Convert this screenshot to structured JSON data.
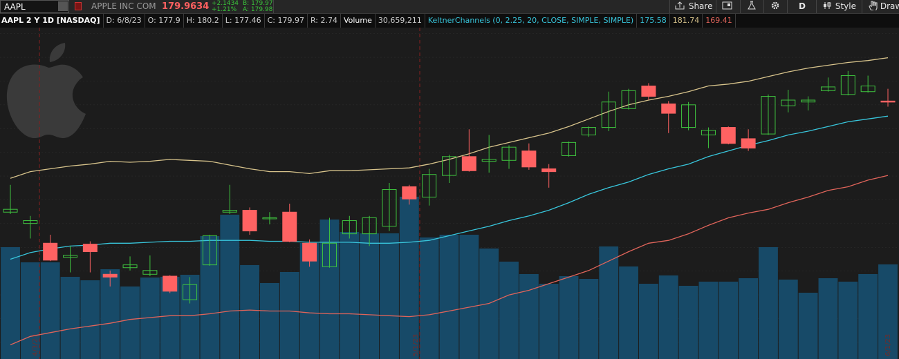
{
  "toolbar": {
    "symbol": "AAPL",
    "company": "APPLE INC COM",
    "last": "179.9634",
    "change": "+2.1434",
    "change_pct": "+1.21%",
    "bid": "B: 179.97",
    "ask": "A: 179.98",
    "share": "Share",
    "period": "D",
    "style": "Style",
    "draw": "Draw"
  },
  "status_bar": {
    "title": "AAPL 2 Y 1D [NASDAQ]",
    "date": "D: 6/8/23",
    "open": "O: 177.9",
    "high": "H: 180.2",
    "low": "L: 177.46",
    "close": "C: 179.97",
    "range": "R: 2.74",
    "volume_label": "Volume",
    "volume": "30,659,211",
    "study": "KeltnerChannels (0, 2.25, 20, CLOSE, SIMPLE, SIMPLE)",
    "study_middle": "175.58",
    "study_upper": "181.74",
    "study_lower": "169.41"
  },
  "chart_data": {
    "type": "candlestick",
    "ylim": [
      149.7,
      184.9
    ],
    "up_color": "#3fc43f",
    "down_color": "#ff6262",
    "open": [
      165.3,
      164.1,
      162.0,
      160.5,
      161.9,
      158.7,
      159.4,
      158.7,
      158.5,
      156.0,
      159.7,
      165.3,
      165.5,
      164.6,
      165.3,
      162.0,
      159.5,
      163.0,
      163.0,
      163.8,
      168.0,
      166.9,
      169.2,
      171.2,
      170.7,
      170.8,
      171.8,
      169.9,
      171.3,
      173.5,
      174.3,
      176.3,
      178.7,
      176.8,
      174.3,
      173.5,
      174.3,
      173.1,
      173.6,
      176.6,
      177.0,
      178.2,
      177.8,
      178.1,
      177.1
    ],
    "high": [
      168.2,
      164.9,
      162.9,
      161.7,
      162.2,
      159.1,
      160.6,
      160.7,
      158.6,
      158.4,
      162.9,
      168.2,
      165.8,
      165.3,
      166.2,
      162.4,
      164.7,
      164.9,
      164.9,
      168.4,
      168.2,
      169.9,
      171.4,
      174.1,
      173.5,
      172.4,
      172.6,
      170.4,
      172.8,
      174.4,
      178.1,
      178.4,
      179.0,
      177.1,
      177.0,
      174.3,
      174.4,
      174.1,
      177.8,
      178.3,
      177.6,
      179.6,
      180.3,
      179.8,
      178.4
    ],
    "low": [
      165.1,
      162.5,
      160.1,
      158.9,
      158.9,
      157.4,
      159.1,
      158.5,
      156.7,
      155.6,
      159.6,
      165.1,
      162.9,
      164.0,
      162.1,
      159.5,
      159.4,
      162.5,
      161.7,
      163.3,
      166.1,
      166.0,
      168.4,
      169.6,
      169.5,
      169.9,
      169.8,
      167.9,
      171.2,
      173.3,
      173.9,
      176.2,
      177.2,
      173.7,
      174.0,
      172.1,
      172.5,
      171.8,
      173.5,
      175.9,
      176.1,
      178.1,
      177.7,
      178.0,
      176.5
    ],
    "close": [
      165.6,
      164.4,
      160.2,
      160.7,
      161.1,
      158.4,
      159.7,
      159.1,
      156.9,
      157.6,
      162.8,
      165.5,
      163.3,
      164.7,
      162.2,
      160.1,
      162.0,
      164.4,
      164.7,
      167.7,
      166.7,
      169.3,
      171.2,
      169.7,
      170.9,
      172.2,
      170.1,
      169.6,
      172.7,
      174.3,
      177.0,
      178.2,
      177.6,
      175.8,
      176.7,
      174.0,
      172.6,
      172.1,
      177.6,
      177.2,
      177.2,
      178.6,
      179.8,
      178.7,
      177.0
    ],
    "volume": {
      "color": "#174a68",
      "vlim": [
        0,
        107.4
      ],
      "values": [
        36.26,
        31.33,
        31.33,
        26.63,
        25.51,
        29.09,
        23.5,
        26.41,
        26.63,
        27.3,
        39.84,
        46.77,
        30.44,
        24.62,
        28.2,
        37.6,
        45.21,
        41.18,
        40.73,
        40.73,
        52.59,
        39.39,
        40.28,
        40.28,
        35.81,
        31.56,
        27.53,
        24.39,
        26.86,
        25.96,
        36.48,
        29.99,
        24.39,
        27.08,
        23.72,
        25.07,
        25.07,
        26.18,
        36.26,
        25.74,
        21.48,
        26.18,
        25.07,
        27.53,
        30.66
      ]
    },
    "series": [
      {
        "color": "#d8c48c",
        "values": [
          168.9,
          169.6,
          169.9,
          170.2,
          170.4,
          170.7,
          170.6,
          170.7,
          170.9,
          170.8,
          170.7,
          170.3,
          169.9,
          169.6,
          169.6,
          169.4,
          169.7,
          169.7,
          169.8,
          169.9,
          170.0,
          170.4,
          170.9,
          171.5,
          172.2,
          172.7,
          173.2,
          173.7,
          174.4,
          175.2,
          176.0,
          176.7,
          177.2,
          177.6,
          178.1,
          178.7,
          178.9,
          179.2,
          179.7,
          180.2,
          180.6,
          180.9,
          181.2,
          181.4,
          181.7
        ]
      },
      {
        "color": "#38c6dc",
        "values": [
          160.3,
          161.0,
          161.4,
          161.7,
          161.8,
          162.0,
          162.0,
          162.1,
          162.2,
          162.2,
          162.3,
          162.3,
          162.3,
          162.2,
          162.2,
          162.1,
          162.1,
          162.1,
          162.0,
          162.0,
          162.1,
          162.3,
          162.8,
          163.3,
          163.8,
          164.4,
          164.9,
          165.5,
          166.3,
          167.2,
          167.9,
          168.5,
          169.3,
          169.9,
          170.4,
          171.2,
          171.8,
          172.4,
          172.9,
          173.5,
          173.9,
          174.4,
          174.9,
          175.2,
          175.5
        ]
      },
      {
        "color": "#e0645a",
        "values": [
          151.2,
          152.1,
          152.5,
          152.9,
          153.2,
          153.5,
          153.9,
          154.1,
          154.3,
          154.3,
          154.5,
          154.8,
          154.9,
          154.8,
          154.8,
          154.6,
          154.5,
          154.5,
          154.4,
          154.3,
          154.2,
          154.4,
          154.8,
          155.2,
          155.6,
          156.5,
          157.0,
          157.7,
          158.4,
          159.1,
          160.1,
          161.1,
          162.0,
          162.3,
          163.0,
          163.9,
          164.7,
          165.2,
          165.6,
          166.3,
          166.9,
          167.6,
          168.0,
          168.7,
          169.2
        ]
      }
    ],
    "date_markers": [
      "4/3/23",
      "5/1/23",
      "6/1/23"
    ]
  }
}
